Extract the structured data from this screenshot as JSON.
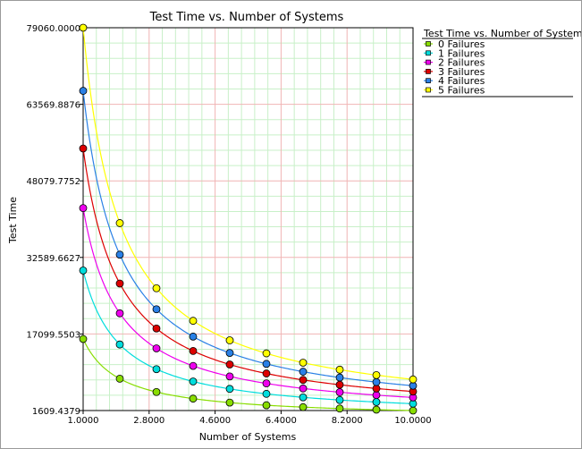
{
  "chart_data": {
    "type": "line",
    "title": "Test Time vs. Number of Systems",
    "xlabel": "Number of Systems",
    "ylabel": "Test Time",
    "xlim": [
      1,
      10
    ],
    "ylim": [
      1609.4379,
      79060
    ],
    "x_ticks": [
      "1.0000",
      "2.8000",
      "4.6000",
      "6.4000",
      "8.2000",
      "10.0000"
    ],
    "x_tick_values": [
      1,
      2.8,
      4.6,
      6.4,
      8.2,
      10
    ],
    "y_ticks": [
      "1609.4379",
      "17099.5503",
      "32589.6627",
      "48079.7752",
      "63569.8876",
      "79060.0000"
    ],
    "y_tick_values": [
      1609.4379,
      17099.5503,
      32589.6627,
      48079.7752,
      63569.8876,
      79060
    ],
    "grid": true,
    "legend": {
      "title": "Test Time vs. Number of System",
      "placement": "top-right"
    },
    "x": [
      1,
      2,
      3,
      4,
      5,
      6,
      7,
      8,
      9,
      10
    ],
    "series": [
      {
        "name": "0 Failures",
        "color": "#88dd00",
        "values": [
          16090,
          8050,
          5360,
          4020,
          3220,
          2680,
          2300,
          2010,
          1790,
          1610
        ]
      },
      {
        "name": "1 Failures",
        "color": "#00dddd",
        "values": [
          29950,
          14970,
          9980,
          7490,
          5990,
          4990,
          4280,
          3740,
          3330,
          3000
        ]
      },
      {
        "name": "2 Failures",
        "color": "#ee00ee",
        "values": [
          42570,
          21280,
          14190,
          10640,
          8510,
          7100,
          6080,
          5320,
          4730,
          4260
        ]
      },
      {
        "name": "3 Failures",
        "color": "#dd0000",
        "values": [
          54630,
          27310,
          18210,
          13660,
          10930,
          9110,
          7800,
          6830,
          6070,
          5460
        ]
      },
      {
        "name": "4 Failures",
        "color": "#2a80e6",
        "values": [
          66290,
          33150,
          22100,
          16570,
          13260,
          11050,
          9470,
          8290,
          7370,
          6630
        ]
      },
      {
        "name": "5 Failures",
        "color": "#ffff00",
        "values": [
          79060,
          39530,
          26350,
          19760,
          15810,
          13180,
          11290,
          9880,
          8780,
          7910
        ]
      }
    ]
  }
}
